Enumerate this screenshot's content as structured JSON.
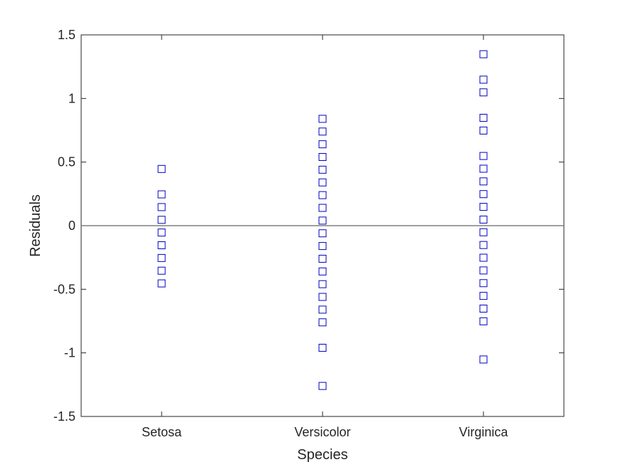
{
  "chart_data": {
    "type": "scatter",
    "title": "",
    "xlabel": "Species",
    "ylabel": "Residuals",
    "categories": [
      "Setosa",
      "Versicolor",
      "Virginica"
    ],
    "ylim": [
      -1.5,
      1.5
    ],
    "yticks": [
      -1.5,
      -1,
      -0.5,
      0,
      0.5,
      1,
      1.5
    ],
    "ytick_labels": [
      "-1.5",
      "-1",
      "-0.5",
      "0",
      "0.5",
      "1",
      "1.5"
    ],
    "grid": false,
    "legend": "none",
    "reference_line": {
      "y": 0,
      "color": "#808080"
    },
    "marker": {
      "shape": "square",
      "filled": false,
      "color": "#0000C0"
    },
    "points": [
      {
        "category": "Setosa",
        "values": [
          0.446,
          0.246,
          0.146,
          0.046,
          -0.054,
          -0.154,
          -0.254,
          -0.354,
          -0.454
        ]
      },
      {
        "category": "Versicolor",
        "values": [
          0.84,
          0.74,
          0.64,
          0.54,
          0.44,
          0.34,
          0.24,
          0.14,
          0.04,
          -0.06,
          -0.16,
          -0.26,
          -0.36,
          -0.46,
          -0.56,
          -0.66,
          -0.76,
          -0.96,
          -1.26
        ]
      },
      {
        "category": "Virginica",
        "values": [
          1.348,
          1.148,
          1.048,
          0.848,
          0.748,
          0.548,
          0.448,
          0.348,
          0.248,
          0.148,
          0.048,
          -0.052,
          -0.152,
          -0.252,
          -0.352,
          -0.452,
          -0.552,
          -0.652,
          -0.752,
          -1.052
        ]
      }
    ]
  }
}
